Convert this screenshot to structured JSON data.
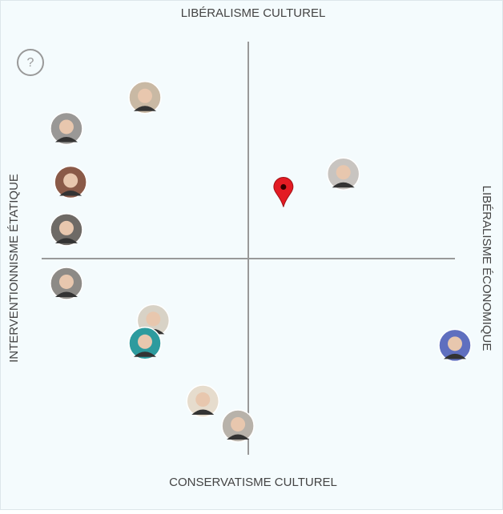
{
  "chart_data": {
    "type": "scatter",
    "labels": {
      "top": "LIBÉRALISME CULTUREL",
      "bottom": "CONSERVATISME CULTUREL",
      "left": "INTERVENTIONNISME ÉTATIQUE",
      "right": "LIBÉRALISME ÉCONOMIQUE"
    },
    "help": "?",
    "xlim": [
      -1,
      1
    ],
    "ylim": [
      -1,
      1
    ],
    "series": [
      {
        "x": [
          -0.5,
          -0.88,
          -0.86,
          -0.88,
          -0.88,
          -0.46,
          -0.5,
          -0.22,
          -0.05,
          0.46,
          1.0
        ],
        "y": [
          0.78,
          0.63,
          0.37,
          0.14,
          -0.12,
          -0.3,
          -0.41,
          -0.69,
          -0.81,
          0.41,
          -0.42
        ],
        "colors": [
          "#c9b9a4",
          "#9a9896",
          "#8a5a48",
          "#6e6a66",
          "#8d8a86",
          "#d8d2c6",
          "#2d9b9e",
          "#e6dccd",
          "#b8b2aa",
          "#c8c4c0",
          "#5f6fbf"
        ]
      }
    ],
    "marker": {
      "x": 0.17,
      "y": 0.25,
      "color": "#e31b23"
    }
  }
}
